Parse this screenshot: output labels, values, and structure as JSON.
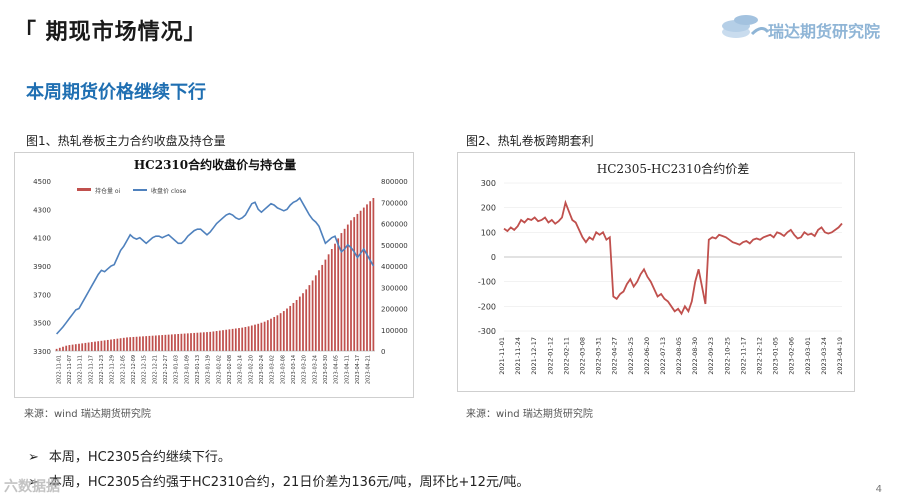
{
  "header": {
    "page_title": "「 期现市场情况」",
    "logo_text": "瑞达期货研究院",
    "section_title": "本周期货价格继续下行"
  },
  "figures": {
    "fig1_caption": "图1、热轧卷板主力合约收盘及持仓量",
    "fig2_caption": "图2、热轧卷板跨期套利",
    "fig1_source": "来源：wind   瑞达期货研究院",
    "fig2_source": "来源：wind   瑞达期货研究院"
  },
  "bullets": [
    "本周，HC2305合约继续下行。",
    "本周，HC2305合约强于HC2310合约，21日价差为136元/吨，周环比+12元/吨。"
  ],
  "page_number": "4",
  "watermark": "六数据据",
  "colors": {
    "bar": "#c0504d",
    "line": "#4f81bd",
    "spread": "#c0504d",
    "title_blue": "#1f6fb2"
  },
  "chart_data": [
    {
      "type": "bar+line",
      "title": "HC2310合约收盘价与持仓量",
      "legend": [
        "持仓量 oi",
        "收盘价 close"
      ],
      "legend_position": "top-left",
      "left_axis": {
        "ylim": [
          3300,
          4500
        ],
        "ticks": [
          "4500",
          "4300",
          "4100",
          "3900",
          "3700",
          "3500",
          "3300"
        ]
      },
      "right_axis": {
        "ylim": [
          0,
          800000
        ],
        "ticks": [
          "800000",
          "700000",
          "600000",
          "500000",
          "400000",
          "300000",
          "200000",
          "100000",
          "0"
        ]
      },
      "x_ticks": [
        "2022-11-01",
        "2022-11-07",
        "2022-11-11",
        "2022-11-17",
        "2022-11-23",
        "2022-11-29",
        "2022-12-05",
        "2022-12-09",
        "2022-12-15",
        "2022-12-21",
        "2022-12-27",
        "2023-01-03",
        "2023-01-09",
        "2023-01-13",
        "2023-01-19",
        "2023-02-02",
        "2023-02-08",
        "2023-02-14",
        "2023-02-20",
        "2023-02-24",
        "2023-03-02",
        "2023-03-08",
        "2023-03-14",
        "2023-03-20",
        "2023-03-24",
        "2023-03-30",
        "2023-04-05",
        "2023-04-11",
        "2023-04-17",
        "2023-04-21"
      ],
      "close": [
        3420,
        3445,
        3470,
        3500,
        3530,
        3560,
        3590,
        3600,
        3640,
        3680,
        3720,
        3760,
        3800,
        3840,
        3870,
        3860,
        3880,
        3900,
        3910,
        3960,
        4010,
        4040,
        4080,
        4120,
        4100,
        4090,
        4100,
        4080,
        4060,
        4080,
        4100,
        4110,
        4110,
        4100,
        4110,
        4120,
        4100,
        4080,
        4060,
        4060,
        4080,
        4110,
        4130,
        4150,
        4160,
        4160,
        4140,
        4120,
        4140,
        4170,
        4200,
        4220,
        4240,
        4260,
        4270,
        4260,
        4240,
        4230,
        4240,
        4260,
        4300,
        4340,
        4350,
        4300,
        4280,
        4300,
        4320,
        4340,
        4330,
        4310,
        4300,
        4290,
        4300,
        4330,
        4350,
        4360,
        4380,
        4340,
        4300,
        4260,
        4230,
        4210,
        4180,
        4120,
        4060,
        4080,
        4100,
        4110,
        4050,
        4000,
        4020,
        4050,
        4030,
        4000,
        3960,
        3990,
        4020,
        3980,
        3940,
        3900
      ],
      "oi": [
        10000,
        15000,
        20000,
        25000,
        28000,
        30000,
        32000,
        34000,
        36000,
        38000,
        40000,
        42000,
        44000,
        46000,
        48000,
        50000,
        52000,
        54000,
        56000,
        58000,
        60000,
        62000,
        64000,
        65000,
        66000,
        67000,
        68000,
        69000,
        70000,
        71000,
        72000,
        73000,
        74000,
        75000,
        76000,
        77000,
        78000,
        79000,
        80000,
        81000,
        82000,
        83000,
        84000,
        85000,
        86000,
        87000,
        88000,
        89000,
        90000,
        92000,
        94000,
        96000,
        98000,
        100000,
        102000,
        104000,
        106000,
        108000,
        110000,
        113000,
        116000,
        120000,
        124000,
        128000,
        133000,
        138000,
        145000,
        152000,
        160000,
        168000,
        178000,
        188000,
        200000,
        212000,
        226000,
        240000,
        256000,
        272000,
        290000,
        310000,
        332000,
        356000,
        380000,
        405000,
        430000,
        455000,
        480000,
        505000,
        530000,
        555000,
        575000,
        595000,
        615000,
        630000,
        645000,
        660000,
        675000,
        690000,
        705000,
        720000
      ]
    },
    {
      "type": "line",
      "title": "HC2305-HC2310合约价差",
      "ylim": [
        -300,
        300
      ],
      "y_ticks": [
        "300",
        "200",
        "100",
        "0",
        "-100",
        "-200",
        "-300"
      ],
      "x_ticks": [
        "2021-11-01",
        "2021-11-24",
        "2021-12-17",
        "2022-01-12",
        "2022-02-11",
        "2022-03-08",
        "2022-03-31",
        "2022-04-27",
        "2022-05-25",
        "2022-06-20",
        "2022-07-13",
        "2022-08-05",
        "2022-08-30",
        "2022-09-23",
        "2022-10-25",
        "2022-11-17",
        "2022-12-12",
        "2023-01-05",
        "2023-02-06",
        "2023-03-01",
        "2023-03-24",
        "2023-04-19"
      ],
      "values": [
        115,
        105,
        120,
        110,
        125,
        150,
        140,
        155,
        150,
        160,
        145,
        150,
        160,
        140,
        150,
        135,
        145,
        160,
        220,
        185,
        150,
        140,
        110,
        80,
        60,
        80,
        70,
        100,
        90,
        100,
        70,
        80,
        -160,
        -170,
        -150,
        -140,
        -110,
        -90,
        -120,
        -100,
        -70,
        -50,
        -80,
        -100,
        -130,
        -160,
        -150,
        -170,
        -180,
        -200,
        -220,
        -210,
        -230,
        -200,
        -220,
        -180,
        -100,
        -50,
        -120,
        -190,
        70,
        80,
        75,
        90,
        85,
        80,
        70,
        60,
        55,
        50,
        60,
        65,
        55,
        70,
        75,
        70,
        80,
        85,
        90,
        80,
        100,
        95,
        85,
        100,
        110,
        90,
        75,
        80,
        100,
        90,
        95,
        85,
        110,
        120,
        100,
        95,
        100,
        110,
        120,
        136
      ]
    }
  ]
}
